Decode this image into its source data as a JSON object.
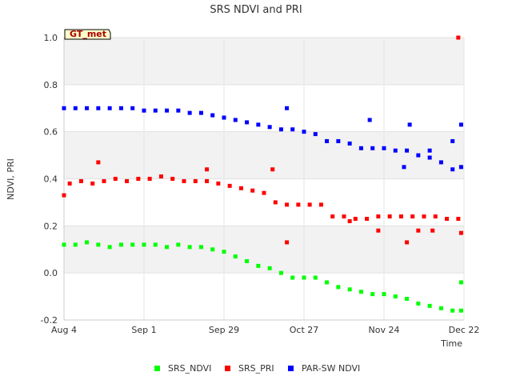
{
  "chart_data": {
    "type": "scatter",
    "title": "SRS NDVI and PRI",
    "badge": "GT_met",
    "xlabel": "Time",
    "ylabel": "NDVI, PRI",
    "ylim": [
      -0.2,
      1.0
    ],
    "yticks": [
      "-0.2",
      "0.0",
      "0.2",
      "0.4",
      "0.6",
      "0.8",
      "1.0"
    ],
    "xlim": [
      "2015-08-04",
      "2015-12-22"
    ],
    "xticks": [
      {
        "date": "2015-08-04",
        "label": "Aug 4"
      },
      {
        "date": "2015-09-01",
        "label": "Sep 1"
      },
      {
        "date": "2015-09-29",
        "label": "Sep 29"
      },
      {
        "date": "2015-10-27",
        "label": "Oct 27"
      },
      {
        "date": "2015-11-24",
        "label": "Nov 24"
      },
      {
        "date": "2015-12-22",
        "label": "Dec 22"
      }
    ],
    "grid": true,
    "legend_position": "bottom",
    "series": [
      {
        "name": "SRS_NDVI",
        "color": "#00ff00",
        "points": [
          [
            "2015-08-04",
            0.12
          ],
          [
            "2015-08-08",
            0.12
          ],
          [
            "2015-08-12",
            0.13
          ],
          [
            "2015-08-16",
            0.12
          ],
          [
            "2015-08-20",
            0.11
          ],
          [
            "2015-08-24",
            0.12
          ],
          [
            "2015-08-28",
            0.12
          ],
          [
            "2015-09-01",
            0.12
          ],
          [
            "2015-09-05",
            0.12
          ],
          [
            "2015-09-09",
            0.11
          ],
          [
            "2015-09-13",
            0.12
          ],
          [
            "2015-09-17",
            0.11
          ],
          [
            "2015-09-21",
            0.11
          ],
          [
            "2015-09-25",
            0.1
          ],
          [
            "2015-09-29",
            0.09
          ],
          [
            "2015-10-03",
            0.07
          ],
          [
            "2015-10-07",
            0.05
          ],
          [
            "2015-10-11",
            0.03
          ],
          [
            "2015-10-15",
            0.02
          ],
          [
            "2015-10-19",
            0.0
          ],
          [
            "2015-10-23",
            -0.02
          ],
          [
            "2015-10-27",
            -0.02
          ],
          [
            "2015-10-31",
            -0.02
          ],
          [
            "2015-11-04",
            -0.04
          ],
          [
            "2015-11-08",
            -0.06
          ],
          [
            "2015-11-12",
            -0.07
          ],
          [
            "2015-11-16",
            -0.08
          ],
          [
            "2015-11-20",
            -0.09
          ],
          [
            "2015-11-24",
            -0.09
          ],
          [
            "2015-11-28",
            -0.1
          ],
          [
            "2015-12-02",
            -0.11
          ],
          [
            "2015-12-06",
            -0.13
          ],
          [
            "2015-12-10",
            -0.14
          ],
          [
            "2015-12-14",
            -0.15
          ],
          [
            "2015-12-18",
            -0.16
          ],
          [
            "2015-12-21",
            -0.16
          ],
          [
            "2015-12-21",
            -0.04
          ]
        ]
      },
      {
        "name": "SRS_PRI",
        "color": "#ff0000",
        "points": [
          [
            "2015-08-04",
            0.33
          ],
          [
            "2015-08-06",
            0.38
          ],
          [
            "2015-08-10",
            0.39
          ],
          [
            "2015-08-14",
            0.38
          ],
          [
            "2015-08-18",
            0.39
          ],
          [
            "2015-08-22",
            0.4
          ],
          [
            "2015-08-26",
            0.39
          ],
          [
            "2015-08-30",
            0.4
          ],
          [
            "2015-09-03",
            0.4
          ],
          [
            "2015-09-07",
            0.41
          ],
          [
            "2015-09-11",
            0.4
          ],
          [
            "2015-09-15",
            0.39
          ],
          [
            "2015-09-19",
            0.39
          ],
          [
            "2015-09-23",
            0.39
          ],
          [
            "2015-09-27",
            0.38
          ],
          [
            "2015-10-01",
            0.37
          ],
          [
            "2015-10-05",
            0.36
          ],
          [
            "2015-10-09",
            0.35
          ],
          [
            "2015-10-13",
            0.34
          ],
          [
            "2015-10-17",
            0.3
          ],
          [
            "2015-10-21",
            0.29
          ],
          [
            "2015-10-25",
            0.29
          ],
          [
            "2015-10-29",
            0.29
          ],
          [
            "2015-11-02",
            0.29
          ],
          [
            "2015-11-06",
            0.24
          ],
          [
            "2015-11-10",
            0.24
          ],
          [
            "2015-11-14",
            0.23
          ],
          [
            "2015-11-18",
            0.23
          ],
          [
            "2015-11-22",
            0.24
          ],
          [
            "2015-11-26",
            0.24
          ],
          [
            "2015-11-30",
            0.24
          ],
          [
            "2015-12-04",
            0.24
          ],
          [
            "2015-12-08",
            0.24
          ],
          [
            "2015-12-12",
            0.24
          ],
          [
            "2015-12-16",
            0.23
          ],
          [
            "2015-12-20",
            0.23
          ],
          [
            "2015-08-16",
            0.47
          ],
          [
            "2015-09-23",
            0.44
          ],
          [
            "2015-10-16",
            0.44
          ],
          [
            "2015-10-21",
            0.13
          ],
          [
            "2015-11-22",
            0.18
          ],
          [
            "2015-12-02",
            0.13
          ],
          [
            "2015-12-06",
            0.18
          ],
          [
            "2015-12-11",
            0.18
          ],
          [
            "2015-11-12",
            0.22
          ],
          [
            "2015-12-21",
            0.17
          ],
          [
            "2015-12-20",
            1.0
          ]
        ]
      },
      {
        "name": "PAR-SW NDVI",
        "color": "#0000ff",
        "points": [
          [
            "2015-08-04",
            0.7
          ],
          [
            "2015-08-08",
            0.7
          ],
          [
            "2015-08-12",
            0.7
          ],
          [
            "2015-08-16",
            0.7
          ],
          [
            "2015-08-20",
            0.7
          ],
          [
            "2015-08-24",
            0.7
          ],
          [
            "2015-08-28",
            0.7
          ],
          [
            "2015-09-01",
            0.69
          ],
          [
            "2015-09-05",
            0.69
          ],
          [
            "2015-09-09",
            0.69
          ],
          [
            "2015-09-13",
            0.69
          ],
          [
            "2015-09-17",
            0.68
          ],
          [
            "2015-09-21",
            0.68
          ],
          [
            "2015-09-25",
            0.67
          ],
          [
            "2015-09-29",
            0.66
          ],
          [
            "2015-10-03",
            0.65
          ],
          [
            "2015-10-07",
            0.64
          ],
          [
            "2015-10-11",
            0.63
          ],
          [
            "2015-10-15",
            0.62
          ],
          [
            "2015-10-19",
            0.61
          ],
          [
            "2015-10-23",
            0.61
          ],
          [
            "2015-10-27",
            0.6
          ],
          [
            "2015-10-31",
            0.59
          ],
          [
            "2015-11-04",
            0.56
          ],
          [
            "2015-11-08",
            0.56
          ],
          [
            "2015-11-12",
            0.55
          ],
          [
            "2015-11-16",
            0.53
          ],
          [
            "2015-11-20",
            0.53
          ],
          [
            "2015-11-24",
            0.53
          ],
          [
            "2015-11-28",
            0.52
          ],
          [
            "2015-12-02",
            0.52
          ],
          [
            "2015-12-06",
            0.5
          ],
          [
            "2015-12-10",
            0.49
          ],
          [
            "2015-12-14",
            0.47
          ],
          [
            "2015-12-18",
            0.44
          ],
          [
            "2015-12-21",
            0.45
          ],
          [
            "2015-10-21",
            0.7
          ],
          [
            "2015-11-19",
            0.65
          ],
          [
            "2015-12-03",
            0.63
          ],
          [
            "2015-12-10",
            0.52
          ],
          [
            "2015-12-18",
            0.56
          ],
          [
            "2015-12-21",
            0.63
          ],
          [
            "2015-12-01",
            0.45
          ]
        ]
      }
    ]
  }
}
